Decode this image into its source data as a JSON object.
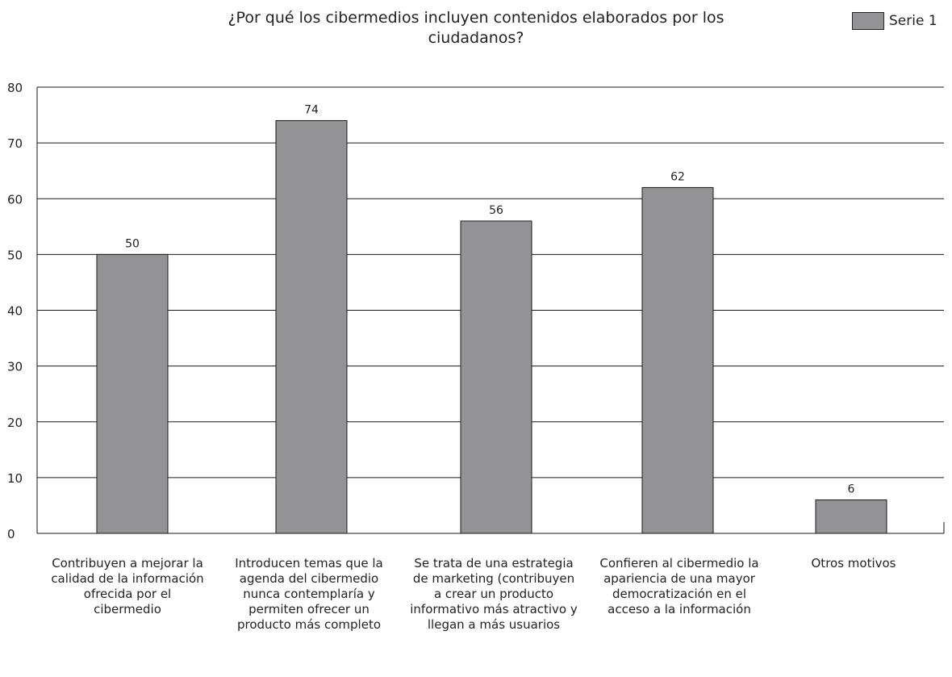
{
  "chart_data": {
    "type": "bar",
    "title": "¿Por qué los cibermedios incluyen contenidos elaborados por los ciudadanos?",
    "legend": {
      "position": "top-right",
      "entries": [
        "Serie 1"
      ]
    },
    "categories": [
      "Contribuyen a mejorar la calidad de la información ofrecida por el cibermedio",
      "Introducen temas que la agenda del cibermedio nunca contemplaría y permiten ofrecer un producto más completo",
      "Se trata de una estrategia de marketing (contribuyen a crear un producto informativo más atractivo y llegan a más usuarios",
      "Confieren al cibermedio la apariencia de una mayor democratización en el acceso a la información",
      "Otros motivos"
    ],
    "series": [
      {
        "name": "Serie 1",
        "values": [
          50,
          74,
          56,
          62,
          6
        ]
      }
    ],
    "ylim": [
      0,
      80
    ],
    "yticks": [
      0,
      10,
      20,
      30,
      40,
      50,
      60,
      70,
      80
    ],
    "grid": true,
    "bar_color": "#939396"
  }
}
